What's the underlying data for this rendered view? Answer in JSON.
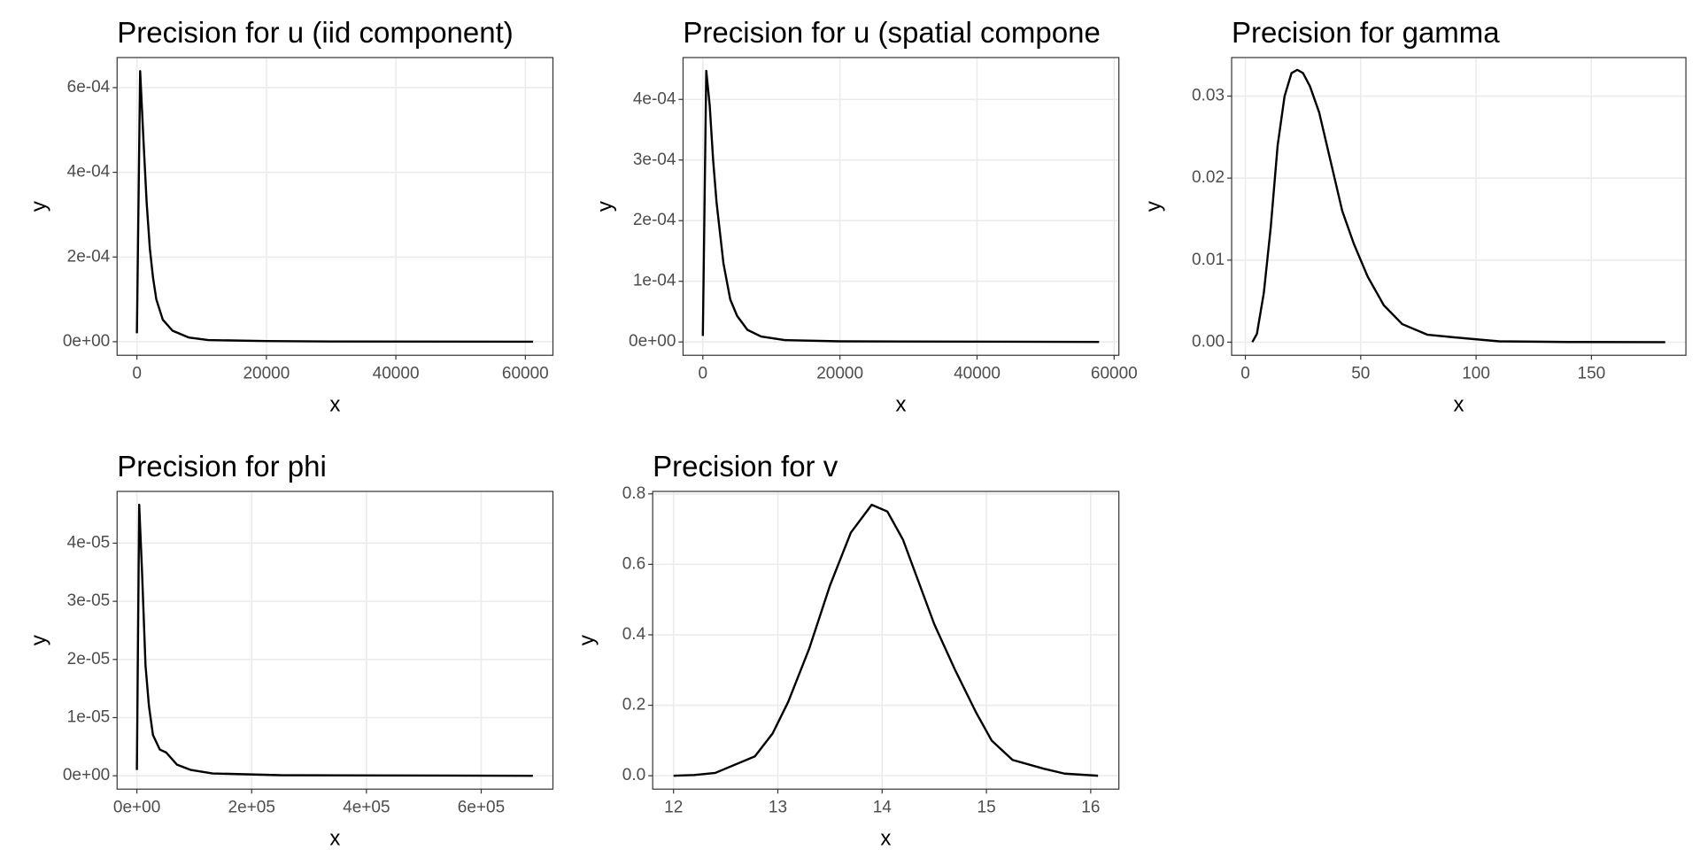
{
  "chart_data": [
    {
      "type": "line",
      "title": "Precision for u (iid component)",
      "xlabel": "x",
      "ylabel": "y",
      "color": "#000000",
      "grid": true,
      "x": [
        0,
        500,
        1000,
        1500,
        2000,
        2500,
        3000,
        4000,
        5500,
        8000,
        11000,
        20000,
        30000,
        61200
      ],
      "values": [
        2e-05,
        0.000639,
        0.00048,
        0.00033,
        0.00022,
        0.00015,
        0.0001,
        5.2e-05,
        2.6e-05,
        1e-05,
        4e-06,
        1.5e-06,
        5e-07,
        0
      ],
      "xlim": [
        -3060,
        64260
      ],
      "ylim": [
        -3.2e-05,
        0.000671
      ],
      "xticks": [
        0,
        20000,
        40000,
        60000
      ],
      "yticks": [
        {
          "value": 0,
          "label": "0e+00"
        },
        {
          "value": 0.0002,
          "label": "2e-04"
        },
        {
          "value": 0.0004,
          "label": "4e-04"
        },
        {
          "value": 0.0006,
          "label": "6e-04"
        }
      ]
    },
    {
      "type": "line",
      "title": "Precision for u (spatial compone",
      "xlabel": "x",
      "ylabel": "y",
      "color": "#000000",
      "grid": true,
      "x": [
        0,
        500,
        1000,
        1500,
        2000,
        3000,
        4000,
        5000,
        6500,
        8500,
        12000,
        20000,
        57800
      ],
      "values": [
        1e-05,
        0.000447,
        0.00039,
        0.0003,
        0.00023,
        0.00013,
        7e-05,
        4.3e-05,
        2e-05,
        9e-06,
        3e-06,
        1e-06,
        0
      ],
      "xlim": [
        -2890,
        60690
      ],
      "ylim": [
        -2.2e-05,
        0.000469
      ],
      "xticks": [
        0,
        20000,
        40000,
        60000
      ],
      "yticks": [
        {
          "value": 0,
          "label": "0e+00"
        },
        {
          "value": 0.0001,
          "label": "1e-04"
        },
        {
          "value": 0.0002,
          "label": "2e-04"
        },
        {
          "value": 0.0003,
          "label": "3e-04"
        },
        {
          "value": 0.0004,
          "label": "4e-04"
        }
      ]
    },
    {
      "type": "line",
      "title": "Precision for gamma",
      "xlabel": "x",
      "ylabel": "y",
      "color": "#000000",
      "grid": true,
      "x": [
        3,
        5,
        8,
        11,
        14,
        17,
        20,
        22.5,
        25,
        28,
        32,
        37,
        42,
        47,
        53,
        60,
        68,
        79,
        90,
        110,
        140,
        182
      ],
      "values": [
        0,
        0.001,
        0.006,
        0.014,
        0.024,
        0.03,
        0.0328,
        0.0332,
        0.0328,
        0.0312,
        0.028,
        0.022,
        0.016,
        0.012,
        0.008,
        0.0045,
        0.0022,
        0.0009,
        0.0006,
        0.0001,
        2e-05,
        0
      ],
      "xlim": [
        -5.95,
        190.95
      ],
      "ylim": [
        -0.0016,
        0.0347
      ],
      "xticks": [
        0,
        50,
        100,
        150
      ],
      "yticks": [
        {
          "value": 0,
          "label": "0.00"
        },
        0.01,
        0.02,
        0.03
      ]
    },
    {
      "type": "line",
      "title": "Precision for phi",
      "xlabel": "x",
      "ylabel": "y",
      "color": "#000000",
      "grid": true,
      "x": [
        0,
        4000,
        9000,
        15000,
        21000,
        28000,
        40000,
        51000,
        70000,
        94000,
        132000,
        250000,
        690000
      ],
      "values": [
        1e-06,
        4.66e-05,
        3.5e-05,
        1.9e-05,
        1.2e-05,
        7e-06,
        4.5e-06,
        4e-06,
        1.9e-06,
        1e-06,
        4e-07,
        1e-07,
        0
      ],
      "xlim": [
        -34500,
        725000
      ],
      "ylim": [
        -2.3e-06,
        4.89e-05
      ],
      "xticks": [
        {
          "value": 0,
          "label": "0e+00"
        },
        {
          "value": 200000,
          "label": "2e+05"
        },
        {
          "value": 400000,
          "label": "4e+05"
        },
        {
          "value": 600000,
          "label": "6e+05"
        }
      ],
      "yticks": [
        {
          "value": 0,
          "label": "0e+00"
        },
        {
          "value": 1e-05,
          "label": "1e-05"
        },
        {
          "value": 2e-05,
          "label": "2e-05"
        },
        {
          "value": 3e-05,
          "label": "3e-05"
        },
        {
          "value": 4e-05,
          "label": "4e-05"
        }
      ]
    },
    {
      "type": "line",
      "title": "Precision for v",
      "xlabel": "x",
      "ylabel": "y",
      "color": "#000000",
      "grid": true,
      "x": [
        12.0,
        12.2,
        12.4,
        12.78,
        12.95,
        13.1,
        13.3,
        13.5,
        13.7,
        13.9,
        14.05,
        14.2,
        14.35,
        14.5,
        14.7,
        14.9,
        15.05,
        15.25,
        15.55,
        15.75,
        16.07
      ],
      "values": [
        0,
        0.002,
        0.008,
        0.055,
        0.12,
        0.21,
        0.36,
        0.54,
        0.69,
        0.769,
        0.75,
        0.67,
        0.55,
        0.43,
        0.3,
        0.18,
        0.1,
        0.045,
        0.02,
        0.006,
        0
      ],
      "xlim": [
        11.8,
        16.27
      ],
      "ylim": [
        -0.038,
        0.807
      ],
      "xticks": [
        12,
        13,
        14,
        15,
        16
      ],
      "yticks": [
        {
          "value": 0,
          "label": "0.0"
        },
        0.2,
        0.4,
        0.6,
        0.8
      ]
    }
  ]
}
